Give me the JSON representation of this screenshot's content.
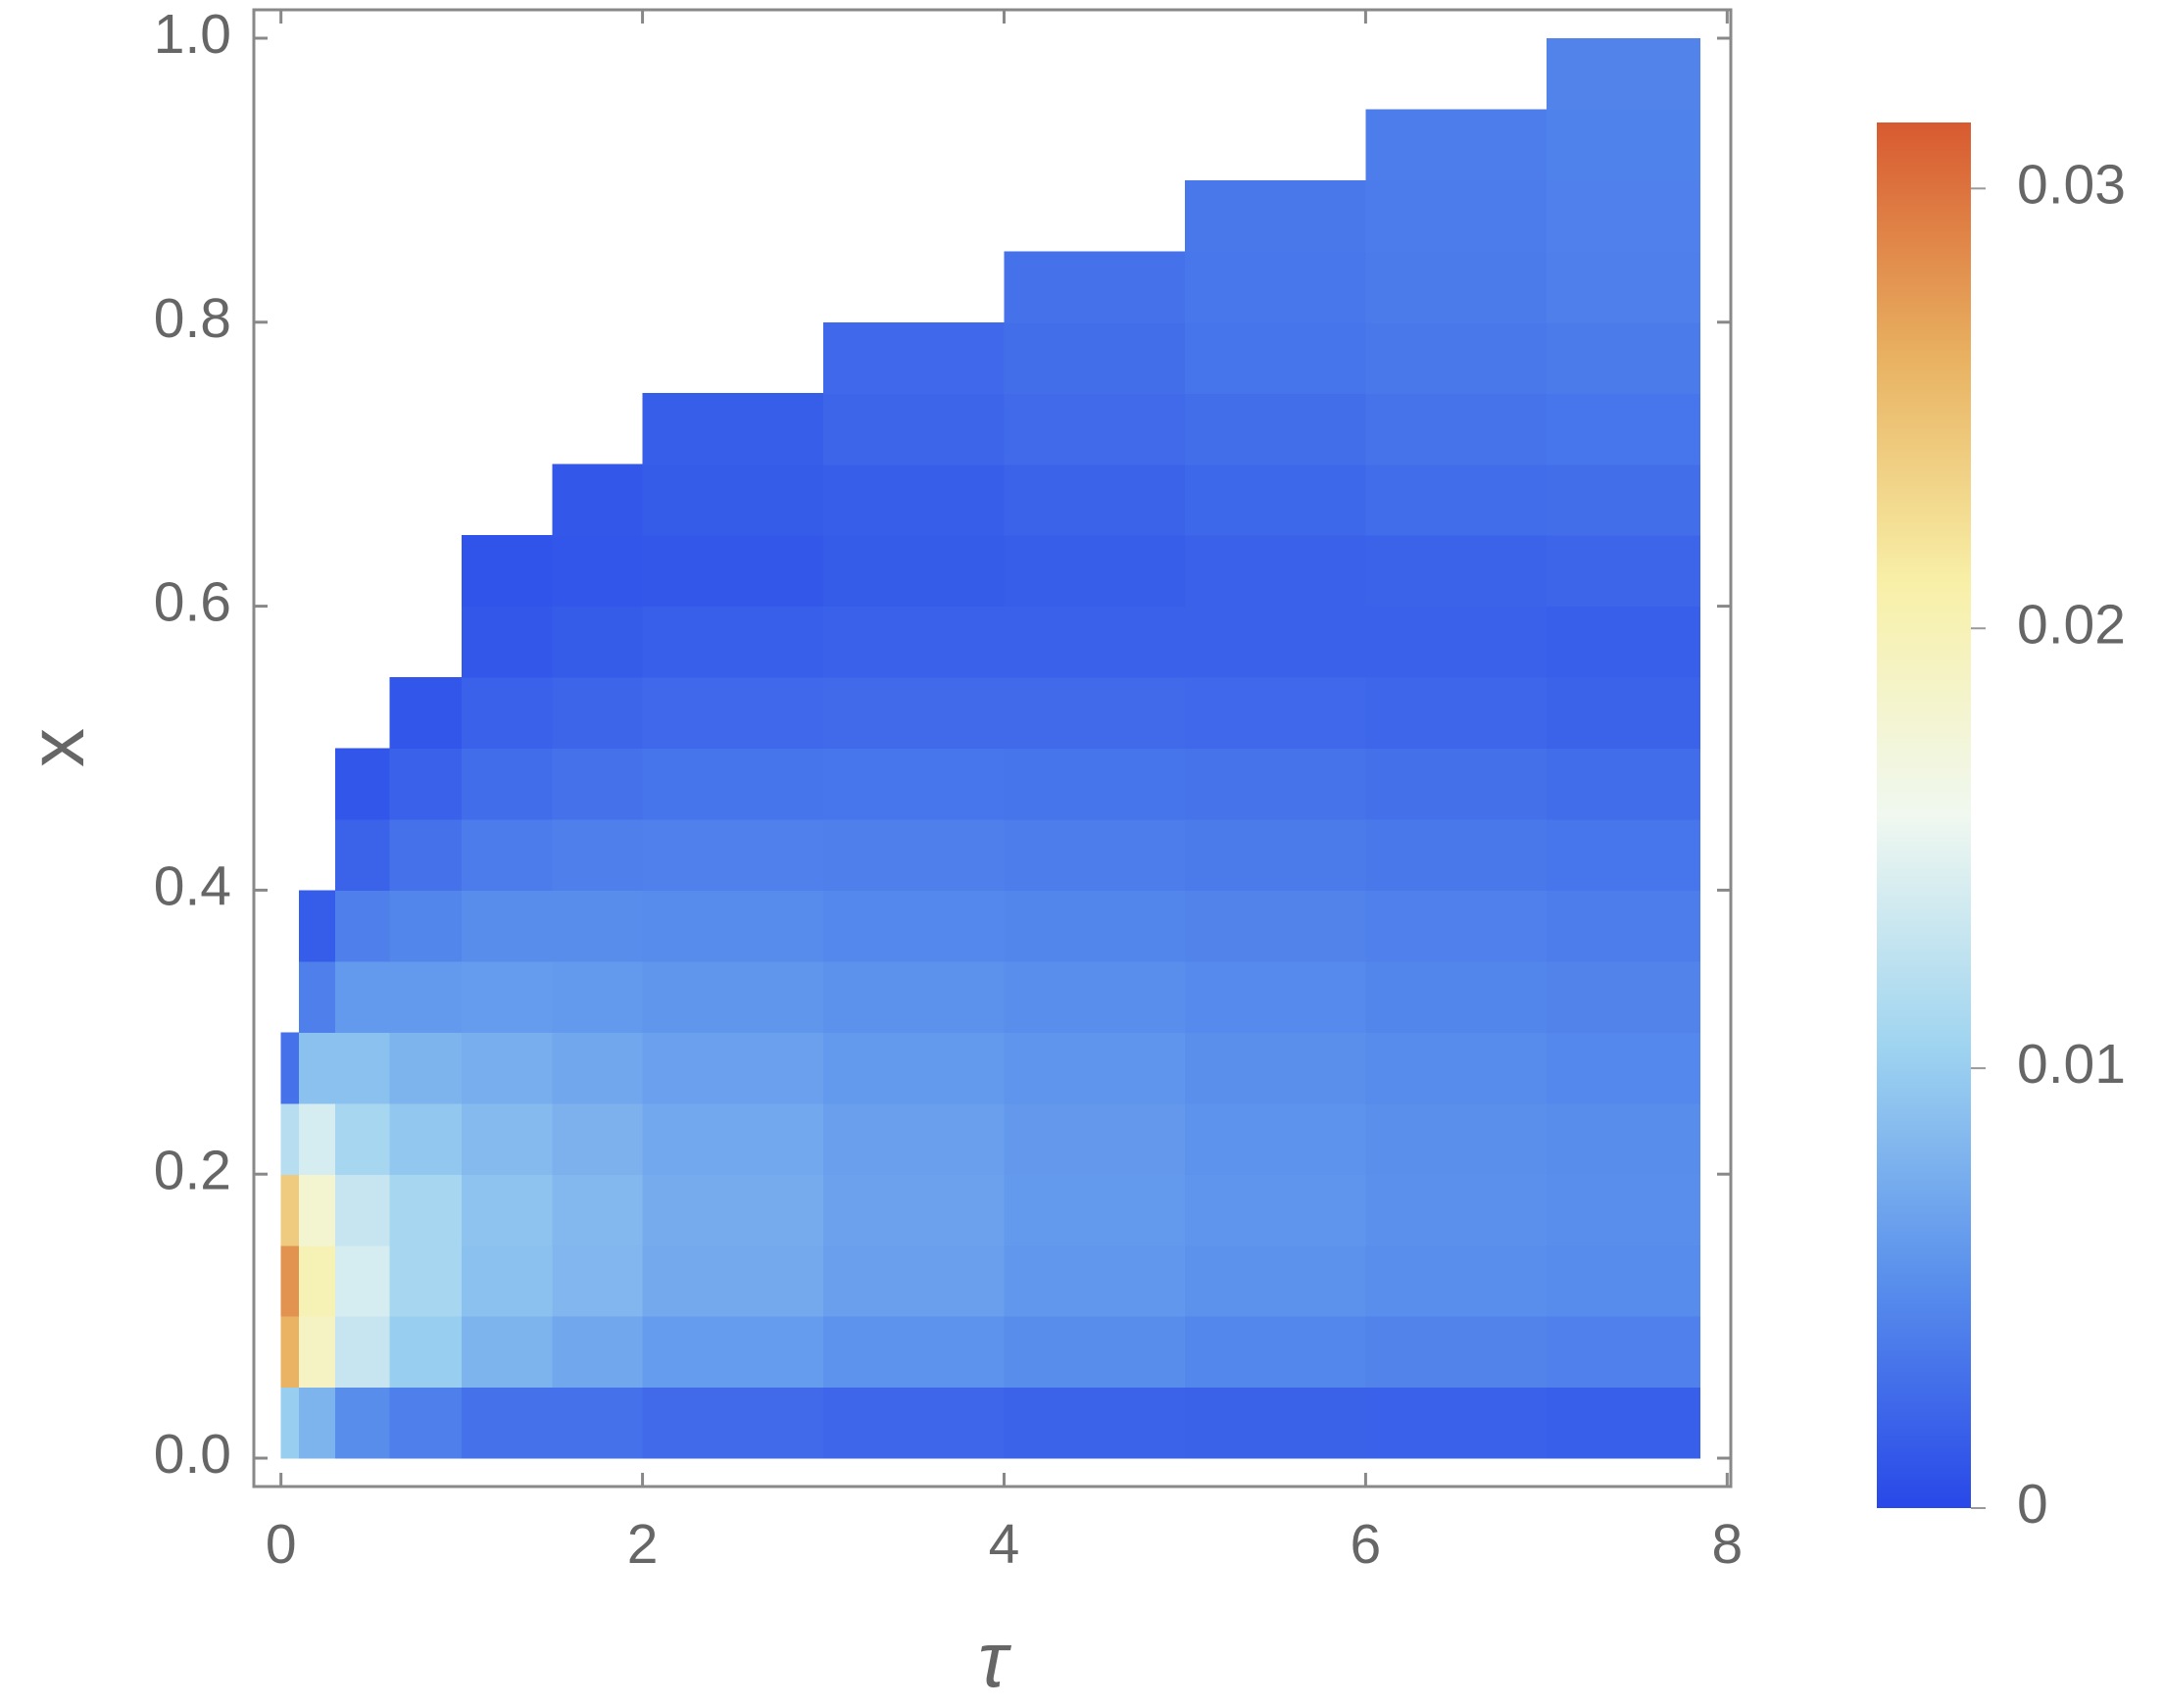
{
  "chart_data": {
    "type": "heatmap",
    "xlabel": "τ",
    "ylabel": "x",
    "xlim": [
      -0.15,
      8.02
    ],
    "ylim": [
      -0.02,
      1.02
    ],
    "xticks": [
      0,
      2,
      4,
      6,
      8
    ],
    "yticks": [
      {
        "value": 0,
        "label": "0.0"
      },
      0.2,
      0.4,
      0.6,
      0.8,
      {
        "value": 1,
        "label": "1.0"
      }
    ],
    "xbins": [
      0,
      0.1,
      0.3,
      0.6,
      1,
      1.5,
      2,
      3,
      4,
      5,
      6,
      7,
      7.85
    ],
    "ybins": [
      0,
      0.05,
      0.1,
      0.15,
      0.2,
      0.25,
      0.3,
      0.35,
      0.4,
      0.45,
      0.5,
      0.55,
      0.6,
      0.65,
      0.7,
      0.75,
      0.8,
      0.85,
      0.9,
      0.95,
      1
    ],
    "z": [
      [
        0.01,
        0.026,
        0.028,
        0.024,
        0.012,
        0.003,
        null,
        null,
        null,
        null,
        null,
        null,
        null,
        null,
        null,
        null,
        null,
        null,
        null,
        null
      ],
      [
        0.008,
        0.019,
        0.02,
        0.018,
        0.014,
        0.009,
        0.004,
        0.0015,
        null,
        null,
        null,
        null,
        null,
        null,
        null,
        null,
        null,
        null,
        null,
        null
      ],
      [
        0.005,
        0.013,
        0.014,
        0.013,
        0.011,
        0.009,
        0.006,
        0.004,
        0.002,
        0.001,
        null,
        null,
        null,
        null,
        null,
        null,
        null,
        null,
        null,
        null
      ],
      [
        0.004,
        0.01,
        0.011,
        0.011,
        0.0095,
        0.008,
        0.006,
        0.0045,
        0.003,
        0.0018,
        0.001,
        null,
        null,
        null,
        null,
        null,
        null,
        null,
        null,
        null
      ],
      [
        0.003,
        0.008,
        0.009,
        0.0092,
        0.0085,
        0.0075,
        0.0062,
        0.005,
        0.0038,
        0.0027,
        0.0018,
        0.0012,
        0.0008,
        null,
        null,
        null,
        null,
        null,
        null,
        null
      ],
      [
        0.003,
        0.007,
        0.0082,
        0.0083,
        0.0078,
        0.007,
        0.006,
        0.005,
        0.004,
        0.003,
        0.0021,
        0.0014,
        0.001,
        0.0012,
        null,
        null,
        null,
        null,
        null,
        null
      ],
      [
        0.0025,
        0.0062,
        0.0072,
        0.0074,
        0.0071,
        0.0065,
        0.0057,
        0.0049,
        0.0041,
        0.0032,
        0.0024,
        0.0017,
        0.0012,
        0.0014,
        0.0016,
        null,
        null,
        null,
        null,
        null
      ],
      [
        0.0022,
        0.0055,
        0.0064,
        0.0066,
        0.0064,
        0.006,
        0.0054,
        0.0047,
        0.004,
        0.0033,
        0.0025,
        0.0018,
        0.0014,
        0.0016,
        0.0021,
        0.0024,
        null,
        null,
        null,
        null
      ],
      [
        0.002,
        0.005,
        0.0058,
        0.006,
        0.0059,
        0.0056,
        0.0051,
        0.0045,
        0.0039,
        0.0032,
        0.0025,
        0.0018,
        0.0016,
        0.002,
        0.0025,
        0.0028,
        0.003,
        null,
        null,
        null
      ],
      [
        0.0019,
        0.0046,
        0.0054,
        0.0056,
        0.0055,
        0.0052,
        0.0048,
        0.0043,
        0.0037,
        0.0031,
        0.0024,
        0.0018,
        0.0018,
        0.0023,
        0.0028,
        0.0032,
        0.0034,
        0.0035,
        null,
        null
      ],
      [
        0.0018,
        0.0043,
        0.0051,
        0.0053,
        0.0052,
        0.0049,
        0.0045,
        0.0041,
        0.0035,
        0.0029,
        0.0022,
        0.0018,
        0.002,
        0.0026,
        0.0031,
        0.0035,
        0.0037,
        0.0038,
        0.0039,
        null
      ],
      [
        0.0017,
        0.0041,
        0.0049,
        0.0051,
        0.005,
        0.0047,
        0.0043,
        0.0039,
        0.0033,
        0.0027,
        0.002,
        0.0017,
        0.0021,
        0.0028,
        0.0033,
        0.0037,
        0.004,
        0.0041,
        0.0042,
        0.0043
      ]
    ],
    "zlim": [
      0,
      0.0315
    ],
    "zticks": [
      0,
      0.01,
      0.02,
      0.03
    ],
    "colorscale": [
      "#2848e8",
      "#5a90ec",
      "#9fd4f0",
      "#f0f8f0",
      "#f8f0a8",
      "#e8b060",
      "#d85a30"
    ]
  }
}
